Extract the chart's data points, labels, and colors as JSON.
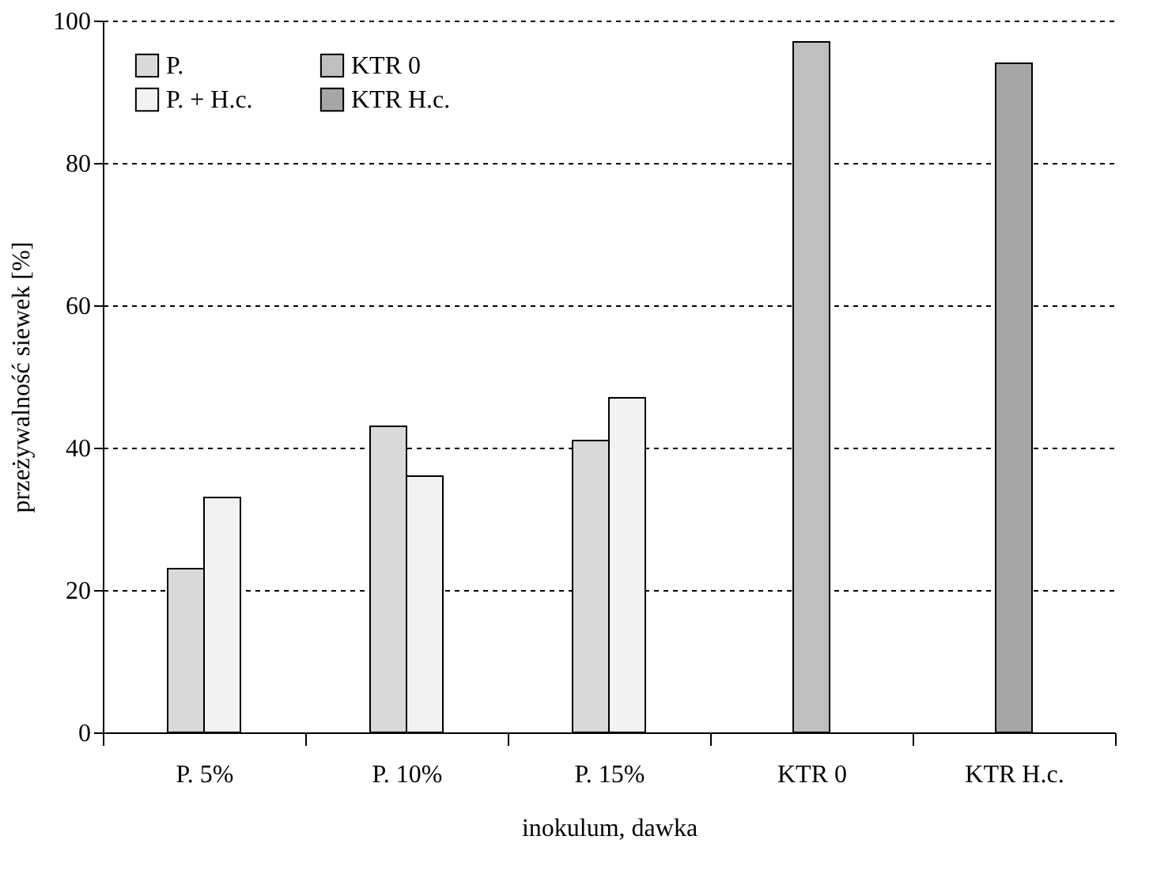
{
  "chart_data": {
    "type": "bar",
    "xlabel": "inokulum, dawka",
    "ylabel": "przeżywalność siewek [%]",
    "categories": [
      "P. 5%",
      "P. 10%",
      "P. 15%",
      "KTR 0",
      "KTR H.c."
    ],
    "series": [
      {
        "name": "P.",
        "color": "#d9d9d9",
        "values": [
          23,
          43,
          41,
          null,
          null
        ]
      },
      {
        "name": "P. + H.c.",
        "color": "#f2f2f2",
        "values": [
          33,
          36,
          47,
          null,
          null
        ]
      },
      {
        "name": "KTR 0",
        "color": "#bfbfbf",
        "values": [
          null,
          null,
          null,
          97,
          null
        ]
      },
      {
        "name": "KTR H.c.",
        "color": "#a6a6a6",
        "values": [
          null,
          null,
          null,
          null,
          94
        ]
      }
    ],
    "ylim": [
      0,
      100
    ],
    "yticks": [
      0,
      20,
      40,
      60,
      80,
      100
    ],
    "grid": "y",
    "legend": "top left"
  }
}
